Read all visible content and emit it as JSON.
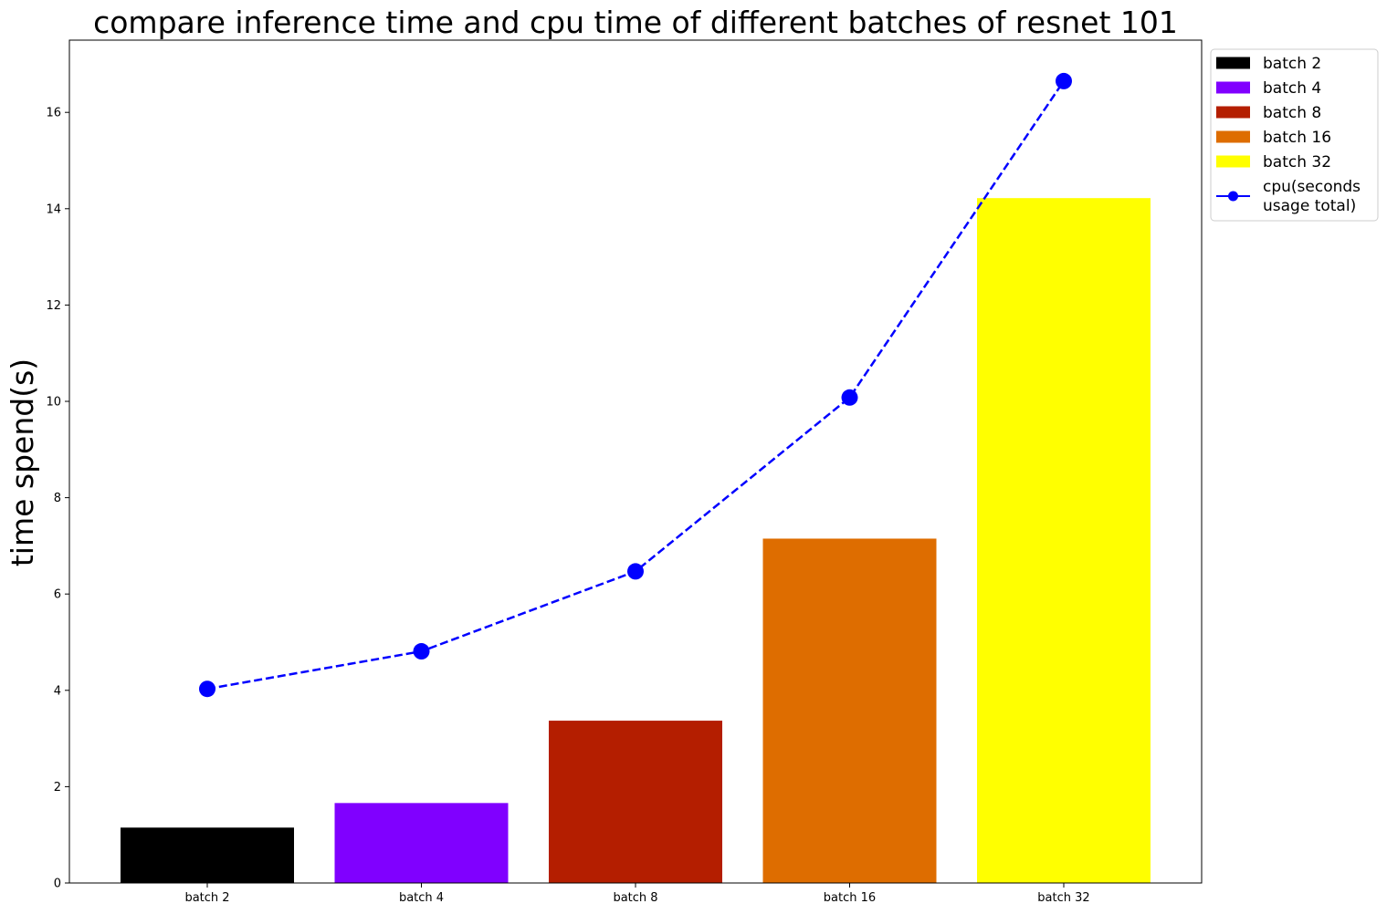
{
  "chart_data": {
    "type": "bar",
    "title": "compare inference time and cpu time of different batches of resnet 101",
    "ylabel": "time spend(s)",
    "xlabel": "",
    "ylim": [
      0,
      17.5
    ],
    "yticks": [
      0,
      2,
      4,
      6,
      8,
      10,
      12,
      14,
      16
    ],
    "categories": [
      "batch 2",
      "batch 4",
      "batch 8",
      "batch 16",
      "batch 32"
    ],
    "bars": {
      "values": [
        1.15,
        1.66,
        3.37,
        7.15,
        14.22
      ],
      "colors": [
        "#000000",
        "#8000ff",
        "#b41e00",
        "#de6d00",
        "#ffff00"
      ]
    },
    "line_series": {
      "name_lines": [
        "cpu(seconds",
        " usage total)"
      ],
      "values": [
        4.03,
        4.81,
        6.47,
        10.08,
        16.65
      ],
      "color": "#0000ff",
      "style": "dashed",
      "marker": "circle"
    },
    "legend": {
      "placement": "outside-top-right",
      "bar_entries": [
        "batch 2",
        "batch 4",
        "batch 8",
        "batch 16",
        "batch 32"
      ]
    },
    "grid": false
  }
}
